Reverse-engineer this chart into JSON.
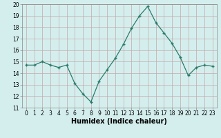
{
  "x": [
    0,
    1,
    2,
    3,
    4,
    5,
    6,
    7,
    8,
    9,
    10,
    11,
    12,
    13,
    14,
    15,
    16,
    17,
    18,
    19,
    20,
    21,
    22,
    23
  ],
  "y": [
    14.7,
    14.7,
    15.0,
    14.7,
    14.5,
    14.7,
    13.1,
    12.2,
    11.5,
    13.3,
    14.3,
    15.3,
    16.5,
    17.9,
    19.0,
    19.8,
    18.4,
    17.5,
    16.6,
    15.4,
    13.8,
    14.5,
    14.7,
    14.6
  ],
  "xlabel": "Humidex (Indice chaleur)",
  "ylim": [
    11,
    20
  ],
  "xlim": [
    -0.5,
    23.5
  ],
  "yticks": [
    11,
    12,
    13,
    14,
    15,
    16,
    17,
    18,
    19,
    20
  ],
  "xticks": [
    0,
    1,
    2,
    3,
    4,
    5,
    6,
    7,
    8,
    9,
    10,
    11,
    12,
    13,
    14,
    15,
    16,
    17,
    18,
    19,
    20,
    21,
    22,
    23
  ],
  "line_color": "#2a7a6a",
  "marker": "+",
  "bg_color": "#d4eeee",
  "grid_color": "#c4a8a8",
  "tick_label_fontsize": 5.5,
  "xlabel_fontsize": 7.0
}
